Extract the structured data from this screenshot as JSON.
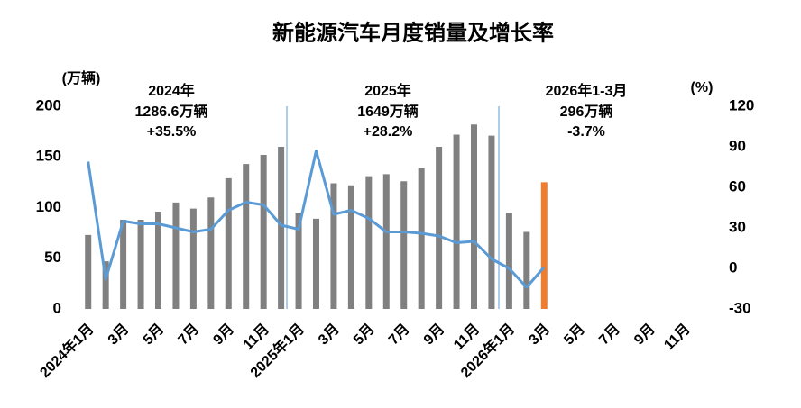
{
  "chart_data": {
    "type": "bar_line",
    "title": "新能源汽车月度销量及增长率",
    "y_label": "(万辆)",
    "y2_label": "(%)",
    "categories": [
      "2024年1月",
      null,
      "3月",
      null,
      "5月",
      null,
      "7月",
      null,
      "9月",
      null,
      "11月",
      null,
      "2025年1月",
      null,
      "3月",
      null,
      "5月",
      null,
      "7月",
      null,
      "9月",
      null,
      "11月",
      null,
      "2026年1月",
      null,
      "3月",
      null,
      "5月",
      null,
      "7月",
      null,
      "9月",
      null,
      "11月",
      null
    ],
    "series": [
      {
        "type": "bar",
        "color": "#808080",
        "values": [
          73,
          47,
          88,
          88,
          96,
          105,
          99,
          110,
          129,
          143,
          152,
          160,
          95,
          89,
          124,
          122,
          131,
          133,
          126,
          139,
          160,
          172,
          182,
          171,
          95,
          76,
          null,
          null,
          null,
          null,
          null,
          null,
          null,
          null,
          null,
          null
        ]
      },
      {
        "type": "bar",
        "color": "#ed7d31",
        "values": [
          null,
          null,
          null,
          null,
          null,
          null,
          null,
          null,
          null,
          null,
          null,
          null,
          null,
          null,
          null,
          null,
          null,
          null,
          null,
          null,
          null,
          null,
          null,
          null,
          null,
          null,
          125,
          null,
          null,
          null,
          null,
          null,
          null,
          null,
          null,
          null
        ]
      },
      {
        "type": "line",
        "axis": "y2",
        "color": "#5b9bd5",
        "values": [
          79,
          -8,
          35,
          33,
          33,
          30,
          27,
          29,
          43,
          49,
          47,
          32,
          29,
          87,
          40,
          43,
          37,
          27,
          27,
          26,
          24,
          19,
          20,
          7,
          0,
          -14,
          1,
          null,
          null,
          null,
          null,
          null,
          null,
          null,
          null,
          null
        ]
      }
    ],
    "ylim": [
      0,
      200
    ],
    "yticks": [
      0,
      50,
      100,
      150,
      200
    ],
    "y2lim": [
      -30,
      120
    ],
    "y2ticks": [
      -30,
      0,
      30,
      60,
      90,
      120
    ],
    "annotations": [
      {
        "lines": [
          "2024年",
          "1286.6万辆",
          "+35.5%"
        ],
        "colors": [
          "#000000",
          "#000000",
          "#000000"
        ]
      },
      {
        "lines": [
          "2025年",
          "1649万辆",
          "+28.2%"
        ],
        "colors": [
          "#000000",
          "#000000",
          "#000000"
        ]
      },
      {
        "lines": [
          "2026年1-3月",
          "296万辆",
          "-3.7%"
        ],
        "colors": [
          "#000000",
          "#000000",
          "#ff0000"
        ]
      }
    ]
  }
}
